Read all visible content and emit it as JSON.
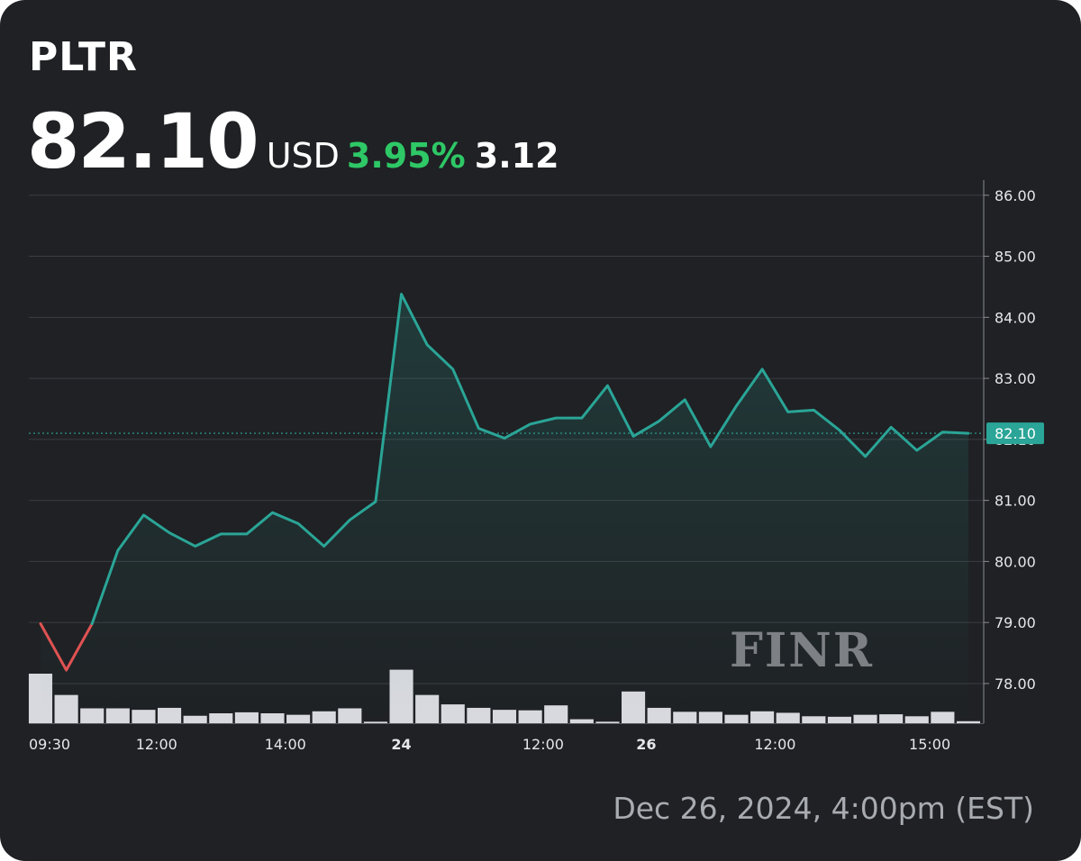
{
  "ticker": "PLTR",
  "price": "82.10",
  "currency": "USD",
  "change_percent": "3.95%",
  "change_value": "3.12",
  "timestamp": "Dec 26, 2024, 4:00pm (EST)",
  "watermark": "FINR",
  "colors": {
    "background": "#1f2124",
    "line": "#2aa597",
    "line_down": "#e05252",
    "volume": "#d8d9de",
    "grid": "#3a3d42",
    "positive": "#2ec866",
    "price_tag": "#2aa597"
  },
  "chart_data": {
    "type": "line",
    "y_ticks": [
      "86.00",
      "85.00",
      "84.00",
      "83.00",
      "82.10",
      "81.00",
      "80.00",
      "79.00",
      "78.00"
    ],
    "y_tick_values": [
      86,
      85,
      84,
      83,
      82,
      81,
      80,
      79,
      78
    ],
    "ylim": [
      77.35,
      86.1
    ],
    "current_price_label": "82.10",
    "current_price": 82.1,
    "x_labels": [
      {
        "text": "09:30",
        "index": 0,
        "bold": false
      },
      {
        "text": "12:00",
        "index": 4.5,
        "bold": false
      },
      {
        "text": "14:00",
        "index": 9.5,
        "bold": false
      },
      {
        "text": "24",
        "index": 14,
        "bold": true
      },
      {
        "text": "12:00",
        "index": 19.5,
        "bold": false
      },
      {
        "text": "26",
        "index": 23.5,
        "bold": true
      },
      {
        "text": "12:00",
        "index": 28.5,
        "bold": false
      },
      {
        "text": "15:00",
        "index": 34.5,
        "bold": false
      }
    ],
    "series": [
      {
        "values": [
          78.98,
          78.22,
          78.98,
          80.18,
          80.76,
          80.47,
          80.25,
          80.45,
          80.45,
          80.8,
          80.62,
          80.25,
          80.68,
          80.98,
          84.38,
          83.55,
          83.15,
          82.18,
          82.02,
          82.25,
          82.35,
          82.35,
          82.88,
          82.05,
          82.3,
          82.65,
          81.88,
          82.55,
          83.15,
          82.45,
          82.48,
          82.15,
          81.72,
          82.2,
          81.82,
          82.12,
          82.1
        ]
      }
    ],
    "volume_relative": [
      1.0,
      0.57,
      0.3,
      0.3,
      0.27,
      0.31,
      0.15,
      0.2,
      0.22,
      0.2,
      0.17,
      0.24,
      0.3,
      0.03,
      1.08,
      0.57,
      0.38,
      0.31,
      0.27,
      0.26,
      0.36,
      0.08,
      0.03,
      0.64,
      0.31,
      0.23,
      0.23,
      0.17,
      0.24,
      0.21,
      0.14,
      0.13,
      0.17,
      0.18,
      0.14,
      0.23,
      0.04
    ]
  }
}
